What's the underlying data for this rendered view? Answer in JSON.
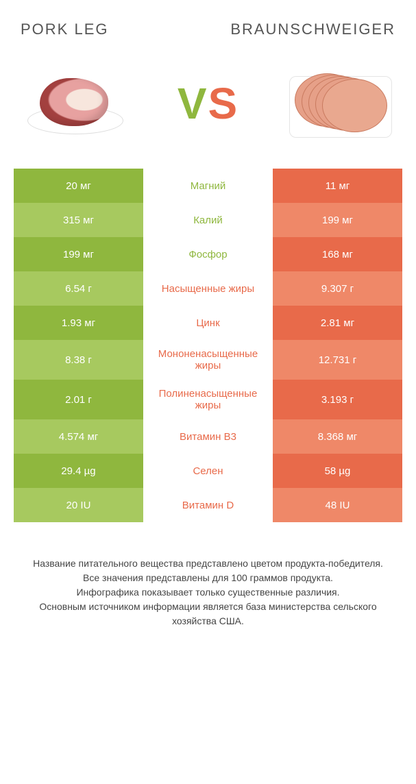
{
  "header": {
    "left_title": "PORK LEG",
    "right_title": "BRAUNSCHWEIGER"
  },
  "vs_label": "VS",
  "colors": {
    "green_dark": "#8fb73e",
    "green_light": "#a7c95f",
    "orange_dark": "#e86a4a",
    "orange_light": "#ef8868",
    "white": "#ffffff"
  },
  "rows": [
    {
      "left": "20 мг",
      "mid": "Магний",
      "right": "11 мг",
      "left_shade": "dark",
      "right_shade": "dark",
      "mid_color": "#8fb73e"
    },
    {
      "left": "315 мг",
      "mid": "Калий",
      "right": "199 мг",
      "left_shade": "light",
      "right_shade": "light",
      "mid_color": "#8fb73e"
    },
    {
      "left": "199 мг",
      "mid": "Фосфор",
      "right": "168 мг",
      "left_shade": "dark",
      "right_shade": "dark",
      "mid_color": "#8fb73e"
    },
    {
      "left": "6.54 г",
      "mid": "Насыщенные жиры",
      "right": "9.307 г",
      "left_shade": "light",
      "right_shade": "light",
      "mid_color": "#e86a4a"
    },
    {
      "left": "1.93 мг",
      "mid": "Цинк",
      "right": "2.81 мг",
      "left_shade": "dark",
      "right_shade": "dark",
      "mid_color": "#e86a4a"
    },
    {
      "left": "8.38 г",
      "mid": "Мононенасыщенные жиры",
      "right": "12.731 г",
      "left_shade": "light",
      "right_shade": "light",
      "mid_color": "#e86a4a"
    },
    {
      "left": "2.01 г",
      "mid": "Полиненасыщенные жиры",
      "right": "3.193 г",
      "left_shade": "dark",
      "right_shade": "dark",
      "mid_color": "#e86a4a"
    },
    {
      "left": "4.574 мг",
      "mid": "Витамин B3",
      "right": "8.368 мг",
      "left_shade": "light",
      "right_shade": "light",
      "mid_color": "#e86a4a"
    },
    {
      "left": "29.4 µg",
      "mid": "Селен",
      "right": "58 µg",
      "left_shade": "dark",
      "right_shade": "dark",
      "mid_color": "#e86a4a"
    },
    {
      "left": "20 IU",
      "mid": "Витамин D",
      "right": "48 IU",
      "left_shade": "light",
      "right_shade": "light",
      "mid_color": "#e86a4a"
    }
  ],
  "footer_lines": [
    "Название питательного вещества представлено цветом продукта-победителя.",
    "Все значения представлены для 100 граммов продукта.",
    "Инфографика показывает только существенные различия.",
    "Основным источником информации является база министерства сельского хозяйства США."
  ]
}
